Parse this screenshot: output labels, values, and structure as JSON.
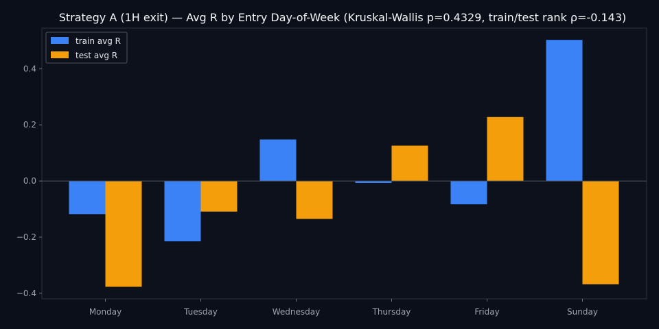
{
  "chart_data": {
    "type": "bar",
    "title": "Strategy A (1H exit) — Avg R by Entry Day-of-Week (Kruskal-Wallis p=0.4329, train/test rank ρ=-0.143)",
    "xlabel": "",
    "ylabel": "",
    "categories": [
      "Monday",
      "Tuesday",
      "Wednesday",
      "Thursday",
      "Friday",
      "Sunday"
    ],
    "series": [
      {
        "name": "train avg R",
        "color": "#3b82f6",
        "values": [
          -0.118,
          -0.215,
          0.148,
          -0.007,
          -0.083,
          0.503
        ]
      },
      {
        "name": "test avg R",
        "color": "#f59e0b",
        "values": [
          -0.377,
          -0.109,
          -0.135,
          0.126,
          0.228,
          -0.368
        ]
      }
    ],
    "ylim": [
      -0.42,
      0.545
    ],
    "yticks": [
      -0.4,
      -0.2,
      0.0,
      0.2,
      0.4
    ],
    "ytick_labels": [
      "−0.4",
      "−0.2",
      "0.0",
      "0.2",
      "0.4"
    ],
    "grid": false,
    "legend": "top-left",
    "colors": {
      "background": "#0b0f19",
      "plot_area": "#0d111b",
      "axis": "#374151",
      "text": "#9ca3af"
    }
  }
}
